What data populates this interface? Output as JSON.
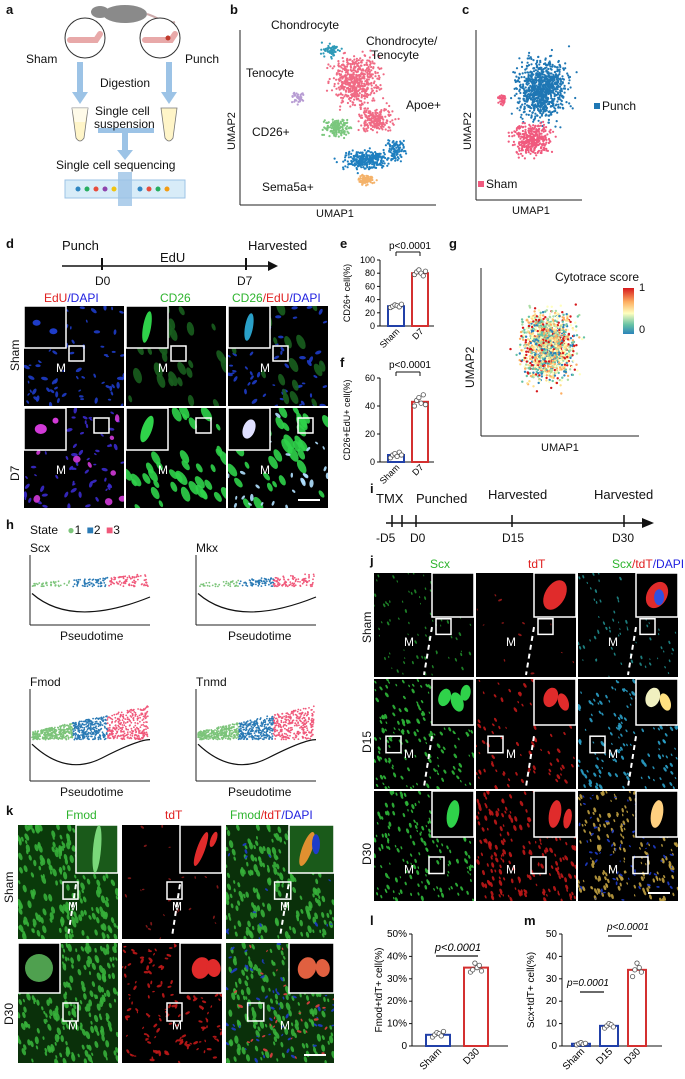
{
  "panel_labels": {
    "a": "a",
    "b": "b",
    "c": "c",
    "d": "d",
    "e": "e",
    "f": "f",
    "g": "g",
    "h": "h",
    "i": "i",
    "j": "j",
    "k": "k",
    "l": "l",
    "m": "m"
  },
  "a": {
    "sham": "Sham",
    "punch": "Punch",
    "digestion": "Digestion",
    "suspension_1": "Single cell",
    "suspension_2": "suspension",
    "sequencing": "Single cell sequencing"
  },
  "b": {
    "chondrocyte": "Chondrocyte",
    "chondro_teno_1": "Chondrocyte/",
    "chondro_teno_2": "Tenocyte",
    "tenocyte": "Tenocyte",
    "cd26": "CD26+",
    "apoe": "Apoe+",
    "sema5a": "Sema5a+",
    "xlabel": "UMAP1",
    "ylabel": "UMAP2"
  },
  "c": {
    "punch": "Punch",
    "sham": "Sham",
    "xlabel": "UMAP1",
    "ylabel": "UMAP2",
    "colors": {
      "punch": "#1f77b4",
      "sham": "#f05a7e"
    }
  },
  "d": {
    "timeline_punch": "Punch",
    "timeline_edu": "EdU",
    "timeline_harvested": "Harvested",
    "d0": "D0",
    "d7": "D7",
    "col1_a": "EdU",
    "col1_b": "/DAPI",
    "col2": "CD26",
    "col3_a": "CD26",
    "col3_b": "/EdU",
    "col3_c": "/DAPI",
    "row_sham": "Sham",
    "row_d7": "D7",
    "m": "M"
  },
  "g": {
    "legend_title": "Cytotrace score",
    "max": "1",
    "min": "0",
    "xlabel": "UMAP1",
    "ylabel": "UMAP2"
  },
  "h": {
    "state": "State",
    "state_items": [
      "1",
      "2",
      "3"
    ],
    "genes": [
      "Scx",
      "Mkx",
      "Fmod",
      "Tnmd"
    ],
    "xlabel": "Pseudotime",
    "colors": [
      "#7cc47a",
      "#2a7ab5",
      "#f0587a"
    ]
  },
  "i": {
    "tmx": "TMX",
    "punched": "Punched",
    "harvested1": "Harvested",
    "harvested2": "Harvested",
    "m5": "-D5",
    "d0": "D0",
    "d15": "D15",
    "d30": "D30"
  },
  "j": {
    "col1": "Scx",
    "col2": "tdT",
    "col3_a": "Scx",
    "col3_b": "/tdT",
    "col3_c": "/DAPI",
    "rows": [
      "Sham",
      "D15",
      "D30"
    ],
    "m": "M"
  },
  "k": {
    "col1": "Fmod",
    "col2": "tdT",
    "col3_a": "Fmod",
    "col3_b": "/tdT",
    "col3_c": "/DAPI",
    "rows": [
      "Sham",
      "D30"
    ],
    "m": "M"
  },
  "chart_data": [
    {
      "id": "e",
      "type": "bar",
      "categories": [
        "Sham",
        "D7"
      ],
      "values": [
        30,
        80
      ],
      "points": [
        [
          28,
          30,
          32,
          31,
          29,
          33
        ],
        [
          78,
          82,
          85,
          80,
          76,
          83
        ]
      ],
      "ylabel": "CD26+ cell(%)",
      "ylim": [
        0,
        100
      ],
      "yticks": [
        "0",
        "20",
        "40",
        "60",
        "80",
        "100"
      ],
      "pvalue": "p<0.0001"
    },
    {
      "id": "f",
      "type": "bar",
      "categories": [
        "Sham",
        "D7"
      ],
      "values": [
        5,
        43
      ],
      "points": [
        [
          3,
          5,
          6,
          4,
          7,
          5
        ],
        [
          40,
          44,
          46,
          42,
          48,
          41
        ]
      ],
      "ylabel": "CD26+EdU+ cell(%)",
      "ylim": [
        0,
        60
      ],
      "yticks": [
        "0",
        "20",
        "40",
        "60"
      ],
      "pvalue": "p<0.0001"
    },
    {
      "id": "l",
      "type": "bar",
      "categories": [
        "Sham",
        "D30"
      ],
      "values": [
        5,
        35
      ],
      "points": [
        [
          4,
          5,
          6,
          5.5,
          4.5,
          6.5
        ],
        [
          33,
          34,
          37,
          35,
          36,
          33.5
        ]
      ],
      "ylabel": "Fmod+tdT+ cell(%)",
      "ylim": [
        0,
        50
      ],
      "yticks": [
        "0",
        "10%",
        "20%",
        "30%",
        "40%",
        "50%"
      ],
      "pvalue": "p<0.0001"
    },
    {
      "id": "m",
      "type": "bar",
      "categories": [
        "Sham",
        "D15",
        "D30"
      ],
      "values": [
        1,
        9,
        34
      ],
      "points": [
        [
          0.5,
          1,
          1.5,
          0.8,
          1.2
        ],
        [
          8,
          9,
          10,
          9.5,
          8.5
        ],
        [
          31,
          34,
          37,
          35,
          33
        ]
      ],
      "ylabel": "Scx+tdT+ cell(%)",
      "ylim": [
        0,
        50
      ],
      "yticks": [
        "0",
        "10",
        "20",
        "30",
        "40",
        "50"
      ],
      "pvalues": [
        "p=0.0001",
        "p<0.0001"
      ]
    }
  ]
}
